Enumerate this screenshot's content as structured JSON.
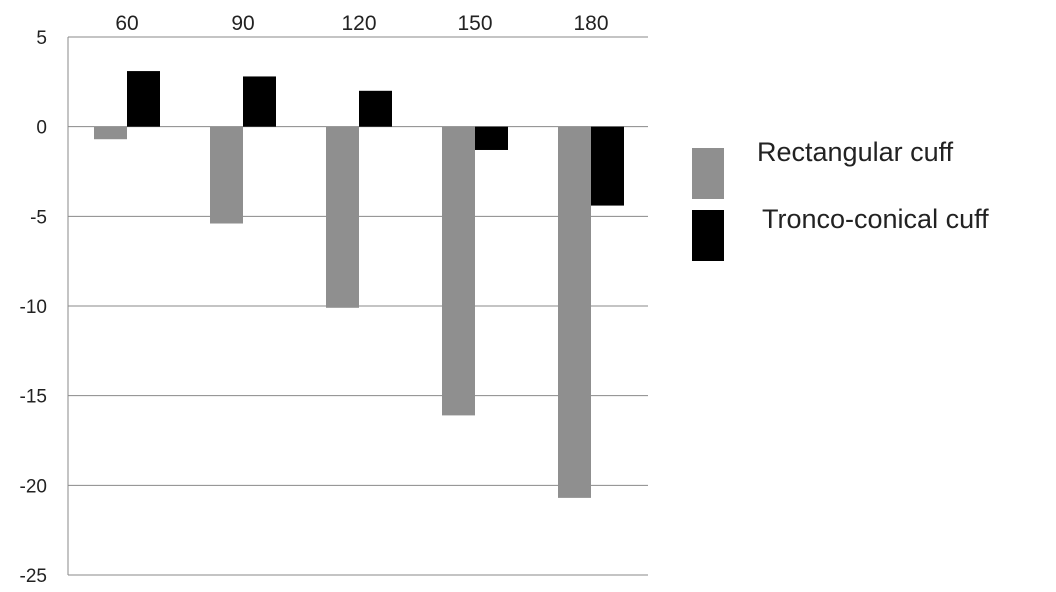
{
  "chart_data": {
    "type": "bar",
    "categories": [
      "60",
      "90",
      "120",
      "150",
      "180"
    ],
    "series": [
      {
        "name": "Rectangular cuff",
        "color": "#8f8f8f",
        "values": [
          -0.7,
          -5.4,
          -10.1,
          -16.1,
          -20.7
        ]
      },
      {
        "name": "Tronco-conical cuff",
        "color": "#000000",
        "values": [
          3.1,
          2.8,
          2.0,
          -1.3,
          -4.4
        ]
      }
    ],
    "yticks": [
      "5",
      "0",
      "-5",
      "-10",
      "-15",
      "-20",
      "-25"
    ],
    "ylim": [
      -25,
      5
    ],
    "title": "",
    "xlabel": "",
    "ylabel": "",
    "grid": true,
    "x_axis_labels_position": "top",
    "legend_position": "right"
  }
}
